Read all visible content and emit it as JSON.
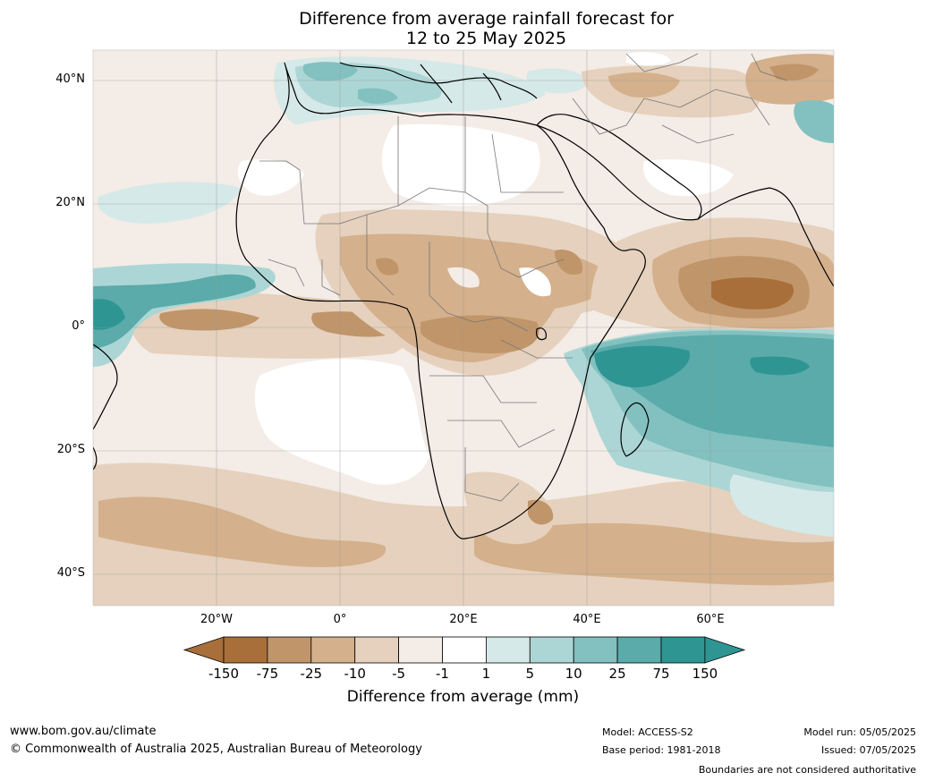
{
  "title": {
    "line1": "Difference from average rainfall forecast for",
    "line2": "12 to 25 May 2025"
  },
  "latitude_labels": [
    "40°N",
    "20°N",
    "0°",
    "20°S",
    "40°S"
  ],
  "longitude_labels": [
    "20°W",
    "0°",
    "20°E",
    "40°E",
    "60°E"
  ],
  "colorbar": {
    "title": "Difference from average (mm)",
    "ticks": [
      "-150",
      "-75",
      "-25",
      "-10",
      "-5",
      "-1",
      "1",
      "5",
      "10",
      "25",
      "75",
      "150"
    ],
    "colors": {
      "below_min": "#a86f3a",
      "bins": [
        "#a86f3a",
        "#c0956a",
        "#d4b08c",
        "#e5d1bd",
        "#f4ece6",
        "#ffffff",
        "#d5e9e8",
        "#acd6d5",
        "#82c1bf",
        "#5aabaa",
        "#2e9593"
      ],
      "above_max": "#2e9593"
    }
  },
  "footer": {
    "website": "www.bom.gov.au/climate",
    "copyright": "© Commonwealth of Australia 2025, Australian Bureau of Meteorology",
    "model": "Model: ACCESS-S2",
    "base_period": "Base period: 1981-2018",
    "model_run": "Model run: 05/05/2025",
    "issued": "Issued: 07/05/2025",
    "disclaimer": "Boundaries are not considered authoritative"
  }
}
